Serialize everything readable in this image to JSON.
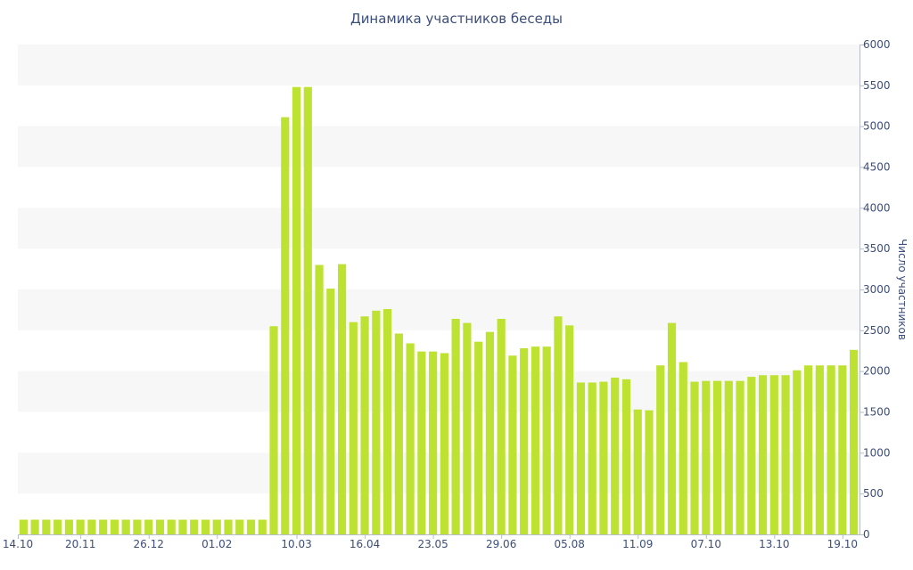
{
  "chart_data": {
    "type": "bar",
    "title": "Динамика участников беседы",
    "ylabel": "Число участников",
    "xlabel": "",
    "ylim": [
      0,
      6000
    ],
    "y_ticks": [
      0,
      500,
      1000,
      1500,
      2000,
      2500,
      3000,
      3500,
      4000,
      4500,
      5000,
      5500,
      6000
    ],
    "x_tick_labels": [
      "14.10",
      "20.11",
      "26.12",
      "01.02",
      "10.03",
      "16.04",
      "23.05",
      "29.06",
      "05.08",
      "11.09",
      "07.10",
      "13.10",
      "19.10"
    ],
    "x_tick_positions": [
      0,
      5.5,
      11.5,
      17.5,
      24.5,
      30.5,
      36.5,
      42.5,
      48.5,
      54.5,
      60.5,
      66.5,
      72.5
    ],
    "grid": true,
    "bar_color": "#bde232",
    "values": [
      180,
      180,
      180,
      180,
      180,
      180,
      180,
      180,
      180,
      180,
      180,
      180,
      180,
      180,
      180,
      180,
      180,
      180,
      180,
      180,
      180,
      180,
      2550,
      5110,
      5480,
      5480,
      3300,
      3010,
      3310,
      2600,
      2670,
      2740,
      2760,
      2460,
      2340,
      2240,
      2240,
      2220,
      2640,
      2590,
      2360,
      2480,
      2640,
      2190,
      2280,
      2300,
      2300,
      2670,
      2560,
      1860,
      1860,
      1870,
      1920,
      1900,
      1530,
      1520,
      2070,
      2590,
      2110,
      1870,
      1880,
      1880,
      1880,
      1880,
      1930,
      1950,
      1950,
      1950,
      2010,
      2070,
      2070,
      2070,
      2070,
      2260
    ]
  }
}
